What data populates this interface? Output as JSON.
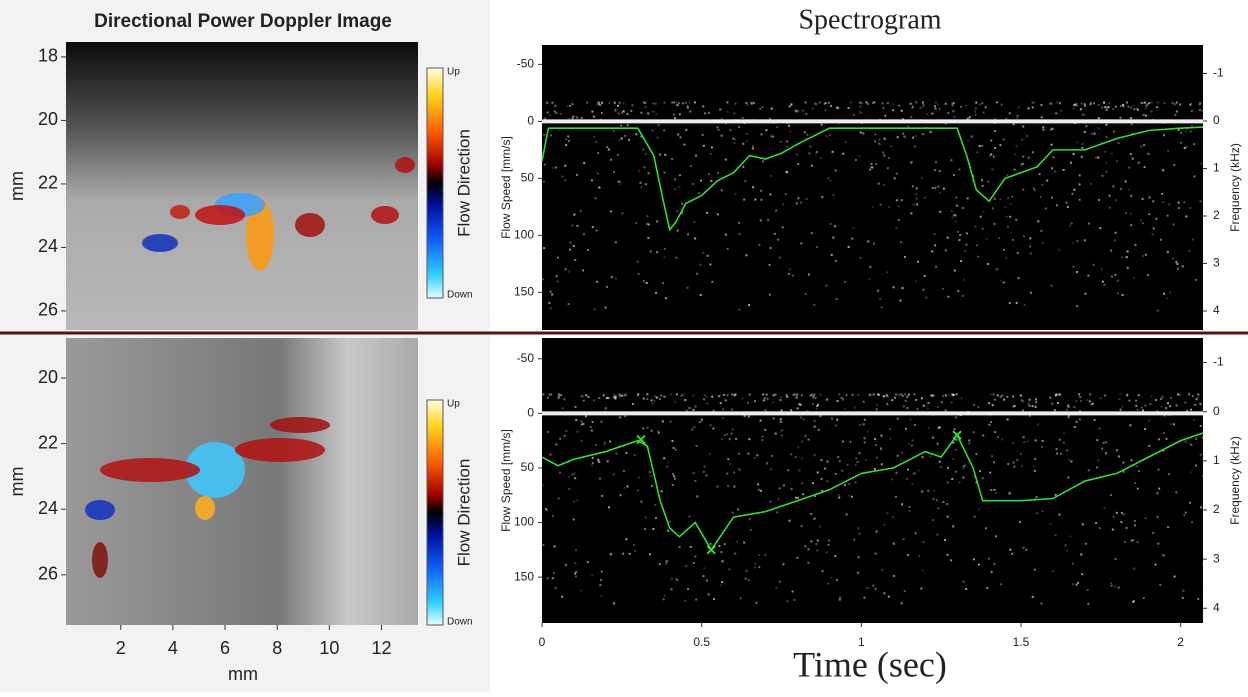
{
  "chart_data": [
    {
      "type": "image",
      "title": "Directional Power Doppler Image",
      "ylabel": "mm",
      "ylim": [
        17.53,
        26.6
      ],
      "y_reversed": true,
      "yticks": [
        18,
        20,
        22,
        24,
        26
      ],
      "colorbar": {
        "label": "Flow Direction",
        "top": "Up",
        "bottom": "Down"
      }
    },
    {
      "type": "image",
      "ylabel": "mm",
      "xlabel": "mm",
      "ylim": [
        18.78,
        27.53
      ],
      "y_reversed": true,
      "yticks": [
        20,
        22,
        24,
        26
      ],
      "xlim": [
        -0.1,
        13.4
      ],
      "xticks": [
        2,
        4,
        6,
        8,
        10,
        12
      ],
      "colorbar": {
        "label": "Flow Direction",
        "top": "Up",
        "bottom": "Down"
      }
    },
    {
      "type": "line",
      "title": "Spectrogram",
      "ylabel": "Flow Speed [mm/s]",
      "y2label": "Frequency (kHz)",
      "xlim": [
        0,
        2.07
      ],
      "ylim": [
        -67,
        183
      ],
      "y_reversed": true,
      "yticks": [
        -50,
        0,
        50,
        100,
        150
      ],
      "y2lim": [
        -1.6,
        4.4
      ],
      "y2ticks": [
        -1,
        0,
        1,
        2,
        3,
        4
      ],
      "series": [
        {
          "color": "#33dd33",
          "style": "line",
          "x": [
            0,
            0.02,
            0.1,
            0.2,
            0.3,
            0.35,
            0.38,
            0.4,
            0.42,
            0.45,
            0.5,
            0.55,
            0.6,
            0.65,
            0.7,
            0.75,
            0.8,
            0.9,
            1.0,
            1.1,
            1.2,
            1.3,
            1.33,
            1.36,
            1.4,
            1.45,
            1.5,
            1.55,
            1.6,
            1.7,
            1.8,
            1.9,
            2.0,
            2.07
          ],
          "values": [
            35,
            6,
            6,
            6,
            6,
            30,
            70,
            95,
            88,
            72,
            65,
            52,
            45,
            30,
            33,
            28,
            20,
            6,
            6,
            6,
            6,
            6,
            30,
            60,
            70,
            50,
            45,
            40,
            25,
            25,
            15,
            8,
            6,
            5
          ]
        }
      ]
    },
    {
      "type": "line",
      "xlabel": "Time (sec)",
      "ylabel": "Flow Speed [mm/s]",
      "y2label": "Frequency (kHz)",
      "xlim": [
        0,
        2.07
      ],
      "xticks": [
        0,
        0.5,
        1,
        1.5,
        2
      ],
      "ylim": [
        -69,
        192
      ],
      "y_reversed": true,
      "yticks": [
        -50,
        0,
        50,
        100,
        150
      ],
      "y2lim": [
        -1.5,
        4.3
      ],
      "y2ticks": [
        -1,
        0,
        1,
        2,
        3,
        4
      ],
      "series": [
        {
          "color": "#33dd33",
          "style": "line",
          "x": [
            0,
            0.05,
            0.1,
            0.2,
            0.3,
            0.33,
            0.37,
            0.4,
            0.43,
            0.48,
            0.53,
            0.6,
            0.7,
            0.8,
            0.9,
            1.0,
            1.1,
            1.2,
            1.25,
            1.3,
            1.35,
            1.38,
            1.5,
            1.6,
            1.7,
            1.8,
            1.9,
            2.0,
            2.07
          ],
          "values": [
            40,
            48,
            42,
            35,
            25,
            30,
            80,
            105,
            113,
            100,
            125,
            95,
            90,
            80,
            70,
            55,
            50,
            35,
            40,
            20,
            50,
            80,
            80,
            78,
            62,
            55,
            40,
            25,
            18
          ]
        },
        {
          "color": "#33dd33",
          "style": "x-marker",
          "x": [
            0.31,
            0.53,
            1.3
          ],
          "values": [
            24,
            125,
            20
          ]
        }
      ]
    }
  ]
}
